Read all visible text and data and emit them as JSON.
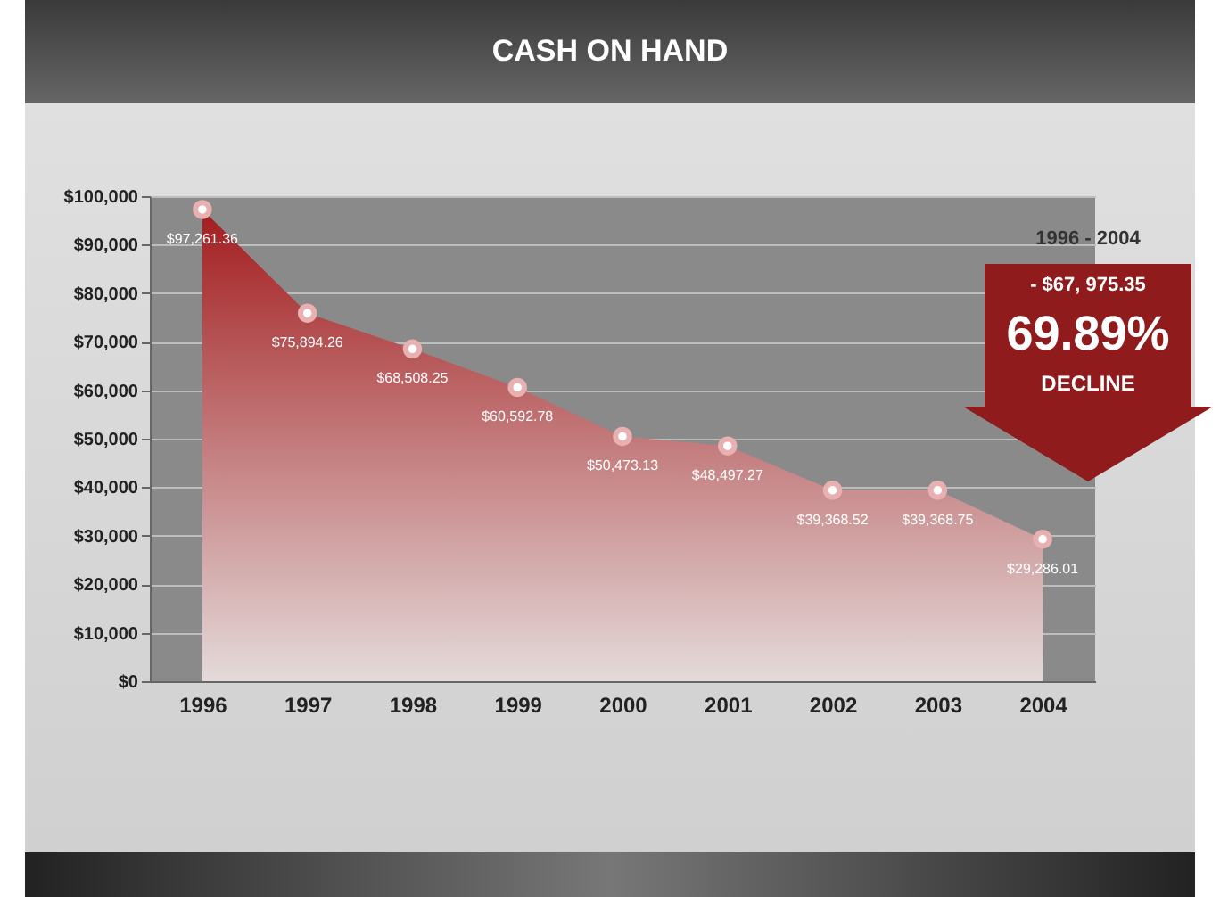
{
  "chart_data": {
    "type": "area",
    "title": "CASH ON HAND",
    "categories": [
      "1996",
      "1997",
      "1998",
      "1999",
      "2000",
      "2001",
      "2002",
      "2003",
      "2004"
    ],
    "series": [
      {
        "color": "#a31d1f",
        "values": [
          97261.36,
          75894.26,
          68508.25,
          60592.78,
          50473.13,
          48497.27,
          39368.52,
          39368.75,
          29286.01
        ]
      }
    ],
    "value_labels": [
      "$97,261.36",
      "$75,894.26",
      "$68,508.25",
      "$60,592.78",
      "$50,473.13",
      "$48,497.27",
      "$39,368.52",
      "$39,368.75",
      "$29,286.01"
    ],
    "marker": "circle",
    "grid": "y",
    "ylim": [
      0,
      100000
    ],
    "yticks": [
      {
        "value": 0,
        "label": "$0"
      },
      {
        "value": 10000,
        "label": "$10,000"
      },
      {
        "value": 20000,
        "label": "$20,000"
      },
      {
        "value": 30000,
        "label": "$30,000"
      },
      {
        "value": 40000,
        "label": "$40,000"
      },
      {
        "value": 50000,
        "label": "$50,000"
      },
      {
        "value": 60000,
        "label": "$60,000"
      },
      {
        "value": 70000,
        "label": "$70,000"
      },
      {
        "value": 80000,
        "label": "$80,000"
      },
      {
        "value": 90000,
        "label": "$90,000"
      },
      {
        "value": 100000,
        "label": "$100,000"
      }
    ],
    "annotations": [
      "1996 - 2004",
      "- $67, 975.35",
      "69.89%",
      "DECLINE"
    ]
  }
}
